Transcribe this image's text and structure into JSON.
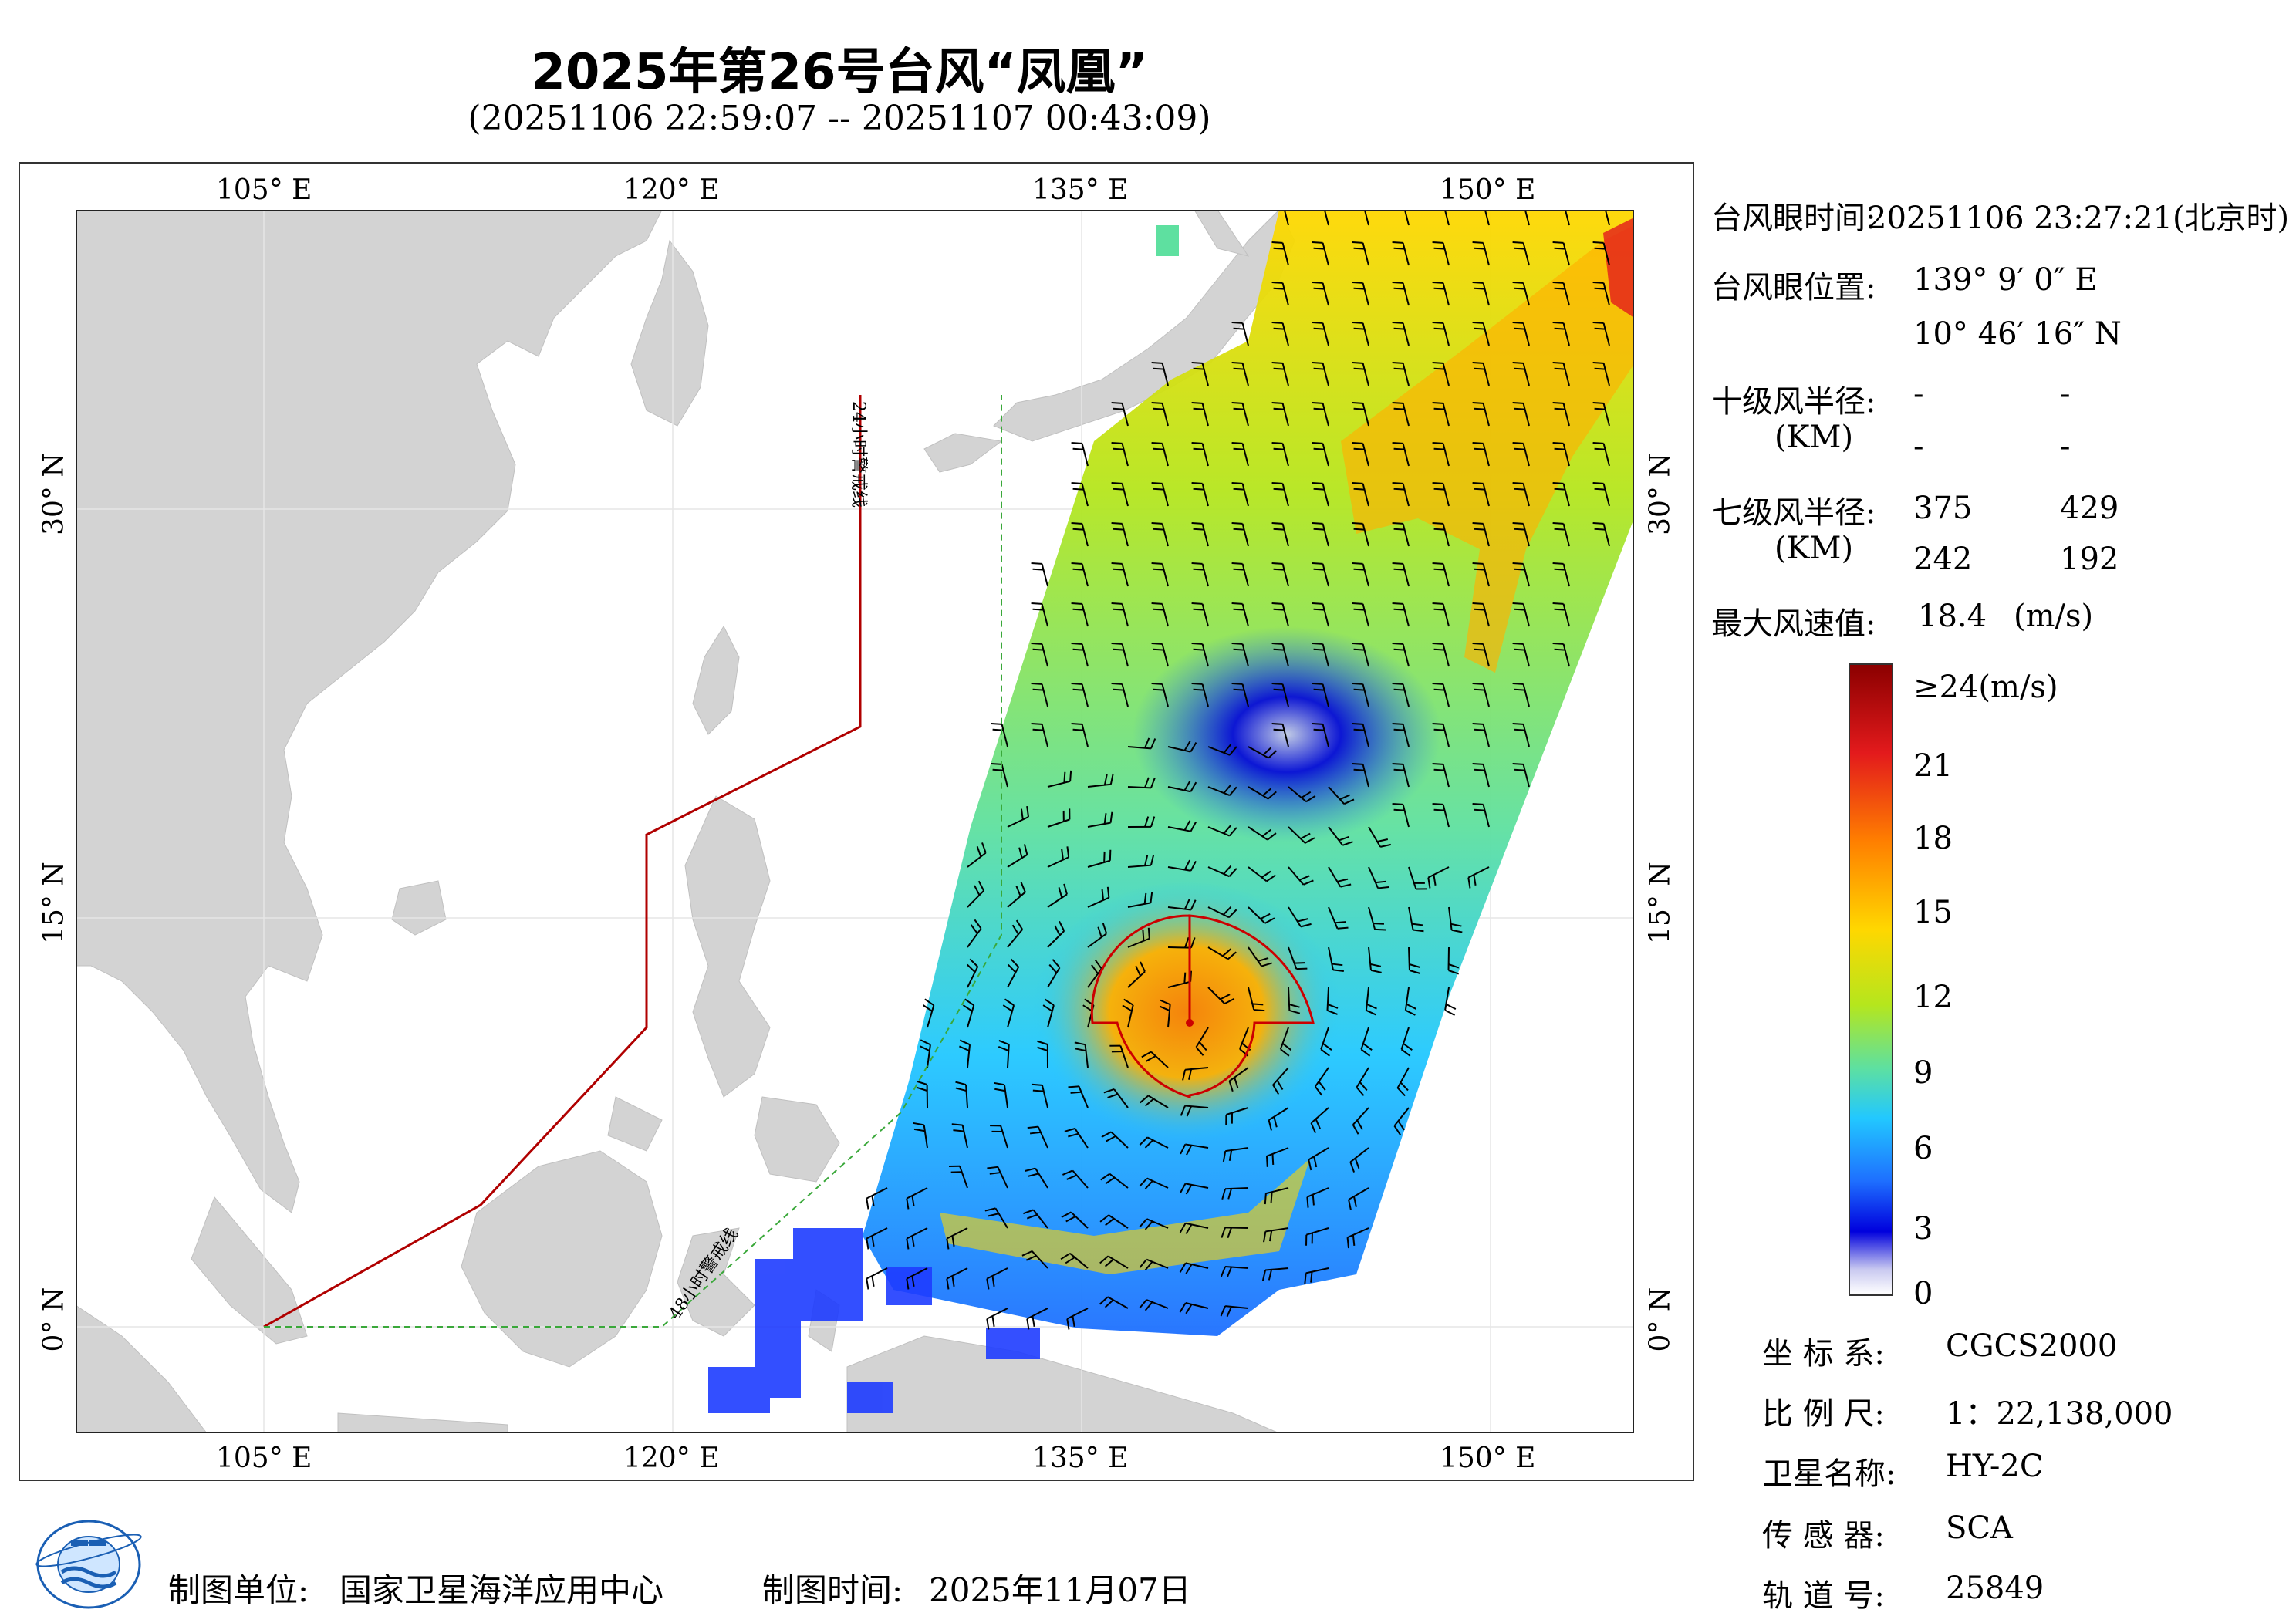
{
  "header": {
    "title": "2025年第26号台风“凤凰”",
    "subtitle": "(20251106 22:59:07 -- 20251107 00:43:09)"
  },
  "axes": {
    "lon_labels": [
      "105° E",
      "120° E",
      "135° E",
      "150° E"
    ],
    "lat_labels": [
      "30° N",
      "15° N",
      "0° N"
    ],
    "lon_range": [
      98,
      155
    ],
    "lat_range": [
      -4,
      41
    ]
  },
  "map": {
    "warning_line_24h": "24小时警戒线",
    "warning_line_48h": "48小时警戒线",
    "land_color": "#d3d3d3",
    "sea_color": "#ffffff"
  },
  "info": {
    "eye_time_label": "台风眼时间:",
    "eye_time_value": "20251106 23:27:21(北京时)",
    "eye_pos_label": "台风眼位置:",
    "eye_lon": "139° 9′ 0″ E",
    "eye_lat": "10° 46′ 16″ N",
    "r10_label": "十级风半径:",
    "r10_unit": "(KM)",
    "r10_values": [
      "-",
      "-",
      "-",
      "-"
    ],
    "r7_label": "七级风半径:",
    "r7_unit": "(KM)",
    "r7_values": [
      "375",
      "429",
      "242",
      "192"
    ],
    "max_wind_label": "最大风速值:",
    "max_wind_value": "18.4",
    "max_wind_unit": "(m/s)"
  },
  "colorbar": {
    "labels": [
      "≥24(m/s)",
      "21",
      "18",
      "15",
      "12",
      "9",
      "6",
      "3",
      "0"
    ],
    "colors": [
      "#8b0000",
      "#e31a1c",
      "#ff7f00",
      "#ffd700",
      "#b5e61d",
      "#5ee0a0",
      "#22c8ff",
      "#1e6fff",
      "#0000dd",
      "#c8c8f0",
      "#ffffff"
    ]
  },
  "meta": {
    "crs_label": "坐 标 系:",
    "crs_value": "CGCS2000",
    "scale_label": "比 例 尺:",
    "scale_value": "1：22,138,000",
    "sat_label": "卫星名称:",
    "sat_value": "HY-2C",
    "sensor_label": "传 感 器:",
    "sensor_value": "SCA",
    "orbit_label": "轨 道 号:",
    "orbit_value": "25849"
  },
  "footer": {
    "org_label": "制图单位:",
    "org_value": "国家卫星海洋应用中心",
    "date_label": "制图时间:",
    "date_value": "2025年11月07日"
  },
  "logo": {
    "text": "NATIONAL SATELLITE OCEAN APPLICATION SERVICE"
  }
}
